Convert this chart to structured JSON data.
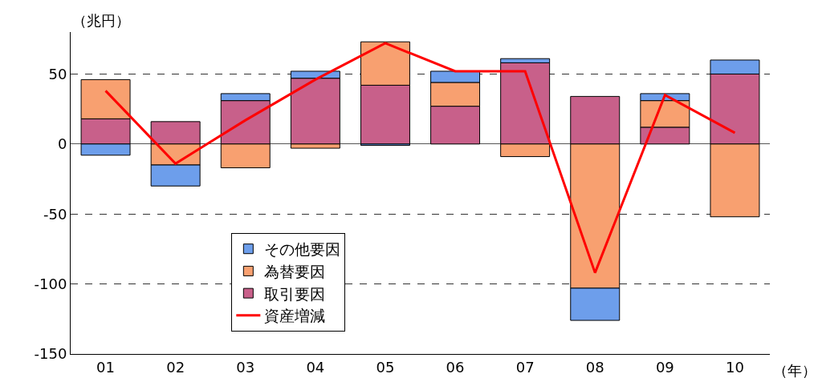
{
  "chart_data": {
    "type": "bar",
    "stacked": true,
    "ylabel": "（兆円）",
    "xlabel": "（年）",
    "categories": [
      "01",
      "02",
      "03",
      "04",
      "05",
      "06",
      "07",
      "08",
      "09",
      "10"
    ],
    "series": [
      {
        "name": "取引要因",
        "color": "#c8608a",
        "values": [
          18,
          16,
          31,
          47,
          42,
          27,
          58,
          34,
          12,
          50
        ]
      },
      {
        "name": "為替要因",
        "color": "#f8a070",
        "values": [
          28,
          -15,
          -17,
          -3,
          31,
          17,
          -9,
          -103,
          19,
          -52
        ]
      },
      {
        "name": "その他要因",
        "color": "#6d9eeb",
        "values": [
          -8,
          -15,
          5,
          5,
          -1,
          8,
          3,
          -23,
          5,
          10
        ]
      },
      {
        "name": "資産増減",
        "type": "line",
        "color": "#ff0000",
        "marker": "none",
        "values": [
          38,
          -14,
          17,
          46,
          72,
          52,
          52,
          -92,
          35,
          8
        ]
      }
    ],
    "ylim": [
      -150,
      80
    ],
    "yticks": [
      -150,
      -100,
      -50,
      0,
      50
    ],
    "grid": "y",
    "legend": "bottom left"
  }
}
